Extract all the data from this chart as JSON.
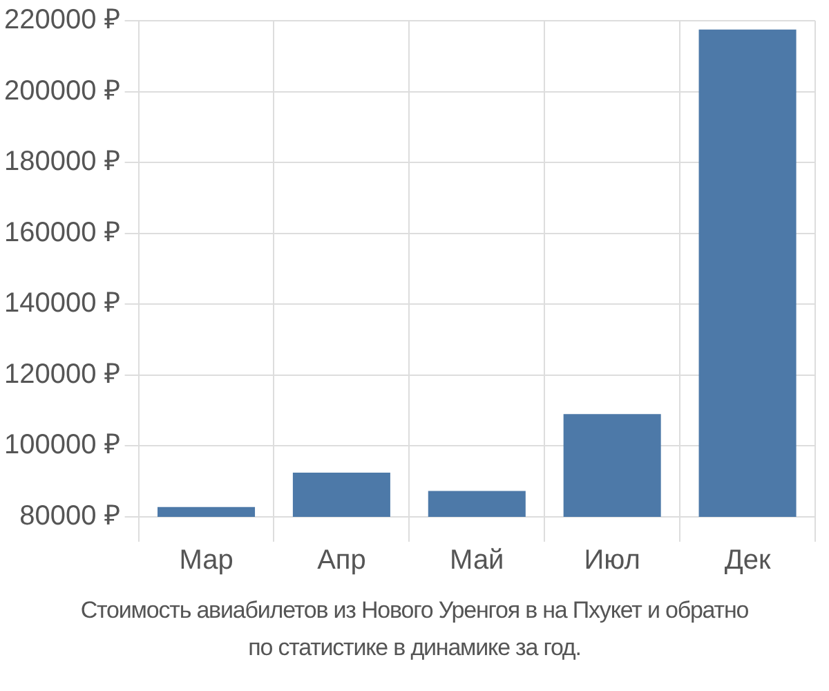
{
  "chart_data": {
    "type": "bar",
    "categories": [
      "Мар",
      "Апр",
      "Май",
      "Июл",
      "Дек"
    ],
    "values": [
      82800,
      92500,
      87300,
      109000,
      217500
    ],
    "color": "#4d79a8",
    "ylim": [
      80000,
      220000
    ],
    "yticks": [
      {
        "value": 80000,
        "label": "80000 ₽"
      },
      {
        "value": 100000,
        "label": "100000 ₽"
      },
      {
        "value": 120000,
        "label": "120000 ₽"
      },
      {
        "value": 140000,
        "label": "140000 ₽"
      },
      {
        "value": 160000,
        "label": "160000 ₽"
      },
      {
        "value": 180000,
        "label": "180000 ₽"
      },
      {
        "value": 200000,
        "label": "200000 ₽"
      },
      {
        "value": 220000,
        "label": "220000 ₽"
      }
    ],
    "grid": true,
    "legend": false,
    "annotations": [
      "Стоимость авиабилетов из Нового Уренгоя в на Пхукет и обратно",
      "по статистике в динамике за год."
    ]
  }
}
